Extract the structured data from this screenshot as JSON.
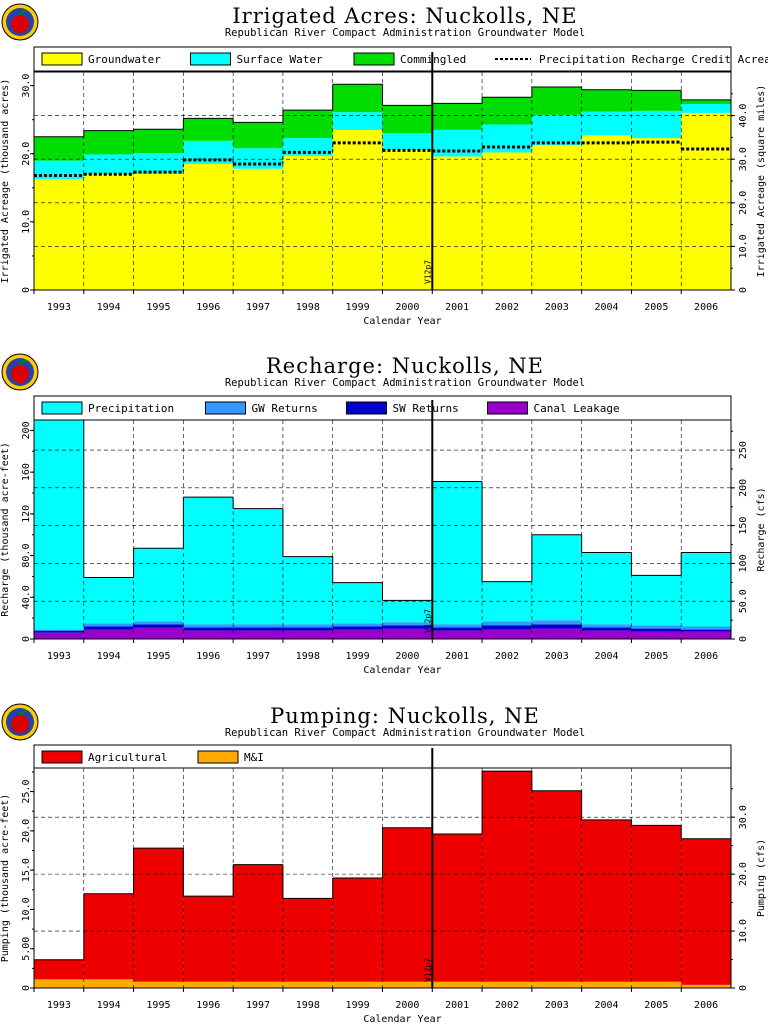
{
  "chart_data": [
    {
      "type": "area",
      "stacked": true,
      "title": "Irrigated Acres: Nuckolls, NE",
      "subtitle": "Republican River Compact Administration Groundwater Model",
      "xlabel": "Calendar Year",
      "ylabel": "Irrigated Acreage (thousand acres)",
      "y2label": "Irrigated Acreage (square miles)",
      "ylim": [
        0,
        32
      ],
      "y2factor": 1.5625,
      "yticks": [
        0,
        10.0,
        20.0,
        30.0
      ],
      "y2ticks": [
        0,
        10.0,
        20.0,
        30.0,
        40.0
      ],
      "y2tickLabels": [
        "0",
        "10.0",
        "20.0",
        "30.0",
        "40.0"
      ],
      "categories": [
        "1993",
        "1994",
        "1995",
        "1996",
        "1997",
        "1998",
        "1999",
        "2000",
        "2001",
        "2002",
        "2003",
        "2004",
        "2005",
        "2006"
      ],
      "series": [
        {
          "name": "Groundwater",
          "color": "#ffff00",
          "values": [
            16.3,
            17.0,
            17.1,
            18.5,
            17.8,
            19.7,
            23.5,
            20.6,
            19.6,
            20.2,
            21.3,
            22.7,
            22.3,
            26.0
          ]
        },
        {
          "name": "Surface Water",
          "color": "#00ffff",
          "values": [
            2.7,
            2.9,
            3.0,
            3.4,
            3.0,
            2.6,
            2.6,
            2.4,
            3.9,
            4.1,
            4.4,
            3.5,
            4.0,
            1.3
          ]
        },
        {
          "name": "Commingled",
          "color": "#00dd00",
          "values": [
            3.5,
            3.5,
            3.5,
            3.3,
            3.8,
            4.1,
            4.1,
            4.1,
            3.9,
            4.0,
            4.1,
            3.2,
            3.0,
            0.6
          ]
        }
      ],
      "line_series": {
        "name": "Precipitation Recharge Credit Acreage",
        "values": [
          16.8,
          17.0,
          17.3,
          19.1,
          18.5,
          20.2,
          21.6,
          20.5,
          20.4,
          21.0,
          21.6,
          21.6,
          21.7,
          20.7
        ]
      },
      "marker": {
        "label": "V12p7",
        "after_category": "2000"
      }
    },
    {
      "type": "area",
      "stacked": true,
      "title": "Recharge: Nuckolls, NE",
      "subtitle": "Republican River Compact Administration Groundwater Model",
      "xlabel": "Calendar Year",
      "ylabel": "Recharge (thousand acre-feet)",
      "y2label": "Recharge (cfs)",
      "ylim": [
        0,
        210
      ],
      "y2factor": 1.38,
      "yticks": [
        0,
        40.0,
        80.0,
        120,
        160,
        200
      ],
      "yticksLabels": [
        "0",
        "40.0",
        "80.0",
        "120",
        "160",
        "200"
      ],
      "y2ticks": [
        0,
        50.0,
        100,
        150,
        200,
        250
      ],
      "y2tickLabels": [
        "0",
        "50.0",
        "100",
        "150",
        "200",
        "250"
      ],
      "categories": [
        "1993",
        "1994",
        "1995",
        "1996",
        "1997",
        "1998",
        "1999",
        "2000",
        "2001",
        "2002",
        "2003",
        "2004",
        "2005",
        "2006"
      ],
      "series": [
        {
          "name": "Canal Leakage",
          "color": "#9900cc",
          "values": [
            6.0,
            9.0,
            11.0,
            8.0,
            8.0,
            8.0,
            9.0,
            10.0,
            8.0,
            9.0,
            10.0,
            8.0,
            7.0,
            7.0
          ]
        },
        {
          "name": "SW Returns",
          "color": "#0000cc",
          "values": [
            2.0,
            3.0,
            3.0,
            3.0,
            3.0,
            3.0,
            3.0,
            3.0,
            3.0,
            4.0,
            4.0,
            3.0,
            3.0,
            2.0
          ]
        },
        {
          "name": "GW Returns",
          "color": "#3399ff",
          "values": [
            1.0,
            3.0,
            3.0,
            3.0,
            3.0,
            3.0,
            3.0,
            3.0,
            3.0,
            4.0,
            4.0,
            3.0,
            3.0,
            3.0
          ]
        },
        {
          "name": "Precipitation",
          "color": "#00ffff",
          "values": [
            201.0,
            44.0,
            70.0,
            122.0,
            111.0,
            65.0,
            39.0,
            21.0,
            137.0,
            38.0,
            82.0,
            69.0,
            48.0,
            71.0
          ]
        }
      ],
      "legend_order": [
        "Precipitation",
        "GW Returns",
        "SW Returns",
        "Canal Leakage"
      ],
      "marker": {
        "label": "V12p7",
        "after_category": "2000"
      }
    },
    {
      "type": "area",
      "stacked": true,
      "title": "Pumping: Nuckolls, NE",
      "subtitle": "Republican River Compact Administration Groundwater Model",
      "xlabel": "Calendar Year",
      "ylabel": "Pumping (thousand acre-feet)",
      "y2label": "Pumping (cfs)",
      "ylim": [
        0,
        28
      ],
      "y2factor": 1.38,
      "yticks": [
        0,
        5.0,
        10.0,
        15.0,
        20.0,
        25.0
      ],
      "yticksLabels": [
        "0",
        "5.00",
        "10.0",
        "15.0",
        "20.0",
        "25.0"
      ],
      "y2ticks": [
        0,
        10.0,
        20.0,
        30.0
      ],
      "y2tickLabels": [
        "0",
        "10.0",
        "20.0",
        "30.0"
      ],
      "categories": [
        "1993",
        "1994",
        "1995",
        "1996",
        "1997",
        "1998",
        "1999",
        "2000",
        "2001",
        "2002",
        "2003",
        "2004",
        "2005",
        "2006"
      ],
      "series": [
        {
          "name": "M&I",
          "color": "#ffaa00",
          "values": [
            1.1,
            1.1,
            0.8,
            0.8,
            0.8,
            0.8,
            0.8,
            0.8,
            0.8,
            0.8,
            0.8,
            0.8,
            0.8,
            0.4
          ]
        },
        {
          "name": "Agricultural",
          "color": "#ee0000",
          "values": [
            2.5,
            10.9,
            17.0,
            10.9,
            14.9,
            10.6,
            13.2,
            19.6,
            18.8,
            26.8,
            24.3,
            20.6,
            19.9,
            18.6
          ]
        }
      ],
      "legend_order": [
        "Agricultural",
        "M&I"
      ],
      "marker": {
        "label": "V12p7",
        "after_category": "2000"
      }
    }
  ]
}
